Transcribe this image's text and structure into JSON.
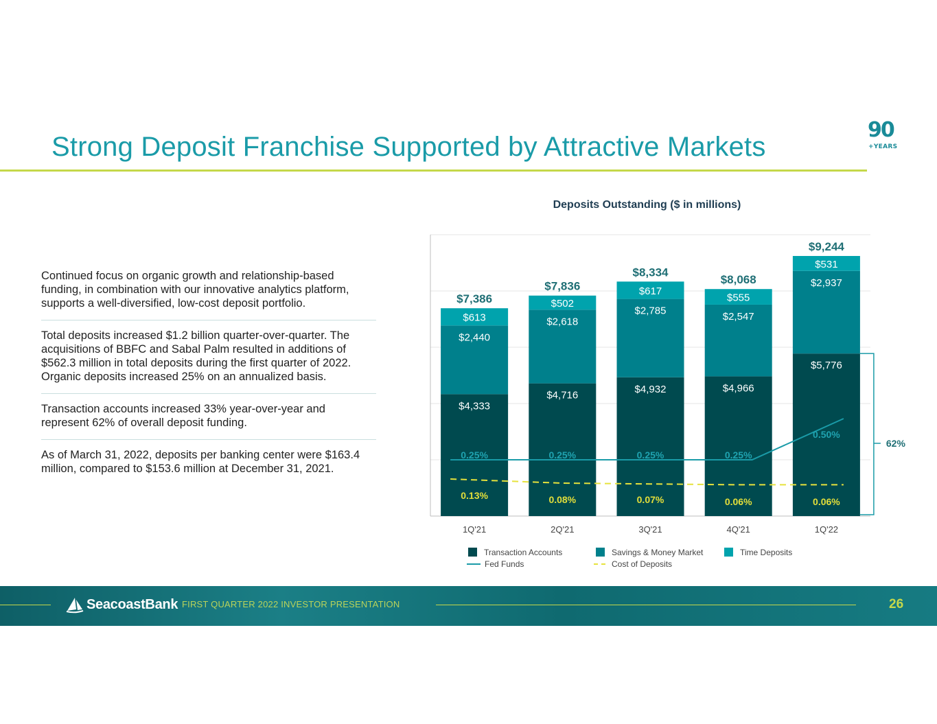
{
  "page": {
    "title": "Strong Deposit Franchise Supported by Attractive Markets",
    "logo_number": "90",
    "logo_text": "+YEARS",
    "page_number": "26"
  },
  "bullets": [
    "Continued focus on organic growth and relationship-based funding, in combination with our innovative analytics platform, supports a well-diversified, low-cost deposit portfolio.",
    "Total deposits increased $1.2 billion quarter-over-quarter. The acquisitions of BBFC and Sabal Palm resulted in additions of $562.3 million in total deposits during the first quarter of 2022. Organic deposits increased 25% on an annualized basis.",
    "Transaction accounts increased 33% year-over-year and represent 62% of overall deposit funding.",
    "As of March 31, 2022, deposits per banking center were $163.4 million, compared to $153.6 million at December 31, 2021."
  ],
  "footer": {
    "brand": "SeacoastBank",
    "presentation": "FIRST QUARTER 2022 INVESTOR PRESENTATION"
  },
  "colors": {
    "transaction": "#004a4f",
    "savings": "#00808c",
    "time": "#00a3ad",
    "fed_funds": "#1a9ba8",
    "cost_of_deposits": "#e6e23c",
    "accent": "#c5d84a"
  },
  "chart_data": {
    "type": "bar",
    "stacked": true,
    "title": "Deposits Outstanding ($ in millions)",
    "categories": [
      "1Q'21",
      "2Q'21",
      "3Q'21",
      "4Q'21",
      "1Q'22"
    ],
    "series": [
      {
        "name": "Transaction Accounts",
        "values": [
          4333,
          4716,
          4932,
          4966,
          5776
        ],
        "labels": [
          "$4,333",
          "$4,716",
          "$4,932",
          "$4,966",
          "$5,776"
        ]
      },
      {
        "name": "Savings & Money Market",
        "values": [
          2440,
          2618,
          2785,
          2547,
          2937
        ],
        "labels": [
          "$2,440",
          "$2,618",
          "$2,785",
          "$2,547",
          "$2,937"
        ]
      },
      {
        "name": "Time Deposits",
        "values": [
          613,
          502,
          617,
          555,
          531
        ],
        "labels": [
          "$613",
          "$502",
          "$617",
          "$555",
          "$531"
        ]
      }
    ],
    "totals": [
      7386,
      7836,
      8334,
      8068,
      9244
    ],
    "total_labels": [
      "$7,386",
      "$7,836",
      "$8,334",
      "$8,068",
      "$9,244"
    ],
    "rate_lines": [
      {
        "name": "Fed Funds",
        "values": [
          0.25,
          0.25,
          0.25,
          0.25,
          0.5
        ],
        "labels": [
          "0.25%",
          "0.25%",
          "0.25%",
          "0.25%",
          "0.50%"
        ]
      },
      {
        "name": "Cost of Deposits",
        "values": [
          0.13,
          0.08,
          0.07,
          0.06,
          0.06
        ],
        "labels": [
          "0.13%",
          "0.08%",
          "0.07%",
          "0.06%",
          "0.06%"
        ]
      }
    ],
    "bracket_label": "62%",
    "ylim": [
      0,
      10000
    ],
    "grid": true,
    "legend": "bottom"
  }
}
